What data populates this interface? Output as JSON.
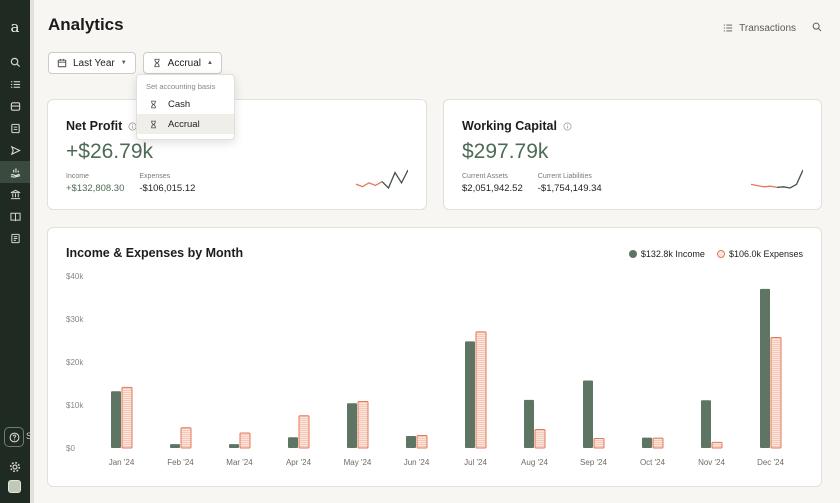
{
  "app": {
    "logo_letter": "a"
  },
  "header": {
    "title": "Analytics",
    "transactions_label": "Transactions"
  },
  "filters": {
    "period_label": "Last Year",
    "basis_label": "Accrual"
  },
  "basis_dropdown": {
    "header": "Set accounting basis",
    "options": [
      "Cash",
      "Accrual"
    ],
    "selected": "Accrual"
  },
  "net_profit": {
    "title": "Net Profit",
    "value": "+$26.79k",
    "income_label": "Income",
    "income_value": "+$132,808.30",
    "expenses_label": "Expenses",
    "expenses_value": "-$106,015.12"
  },
  "working_capital": {
    "title": "Working Capital",
    "value": "$297.79k",
    "assets_label": "Current Assets",
    "assets_value": "$2,051,942.52",
    "liabilities_label": "Current Liabilities",
    "liabilities_value": "-$1,754,149.34"
  },
  "sidebar": {
    "help_trailing": "S",
    "items": [
      "search-icon",
      "list-icon",
      "archive-icon",
      "document-icon",
      "send-icon",
      "chart-hand-icon",
      "bank-icon",
      "book-icon",
      "report-icon"
    ]
  },
  "colors": {
    "income": "#5e7564",
    "expense": "#e07a5b",
    "expense_fill": "#fbe6de",
    "sidebar": "#1f2a22"
  },
  "chart_data": {
    "type": "bar",
    "title": "Income & Expenses by Month",
    "categories": [
      "Jan '24",
      "Feb '24",
      "Mar '24",
      "Apr '24",
      "May '24",
      "Jun '24",
      "Jul '24",
      "Aug '24",
      "Sep '24",
      "Oct '24",
      "Nov '24",
      "Dec '24"
    ],
    "series": [
      {
        "name": "Income",
        "legend": "$132.8k Income",
        "values": [
          13200,
          900,
          900,
          2500,
          10400,
          2800,
          24800,
          11200,
          15700,
          2400,
          11100,
          37000
        ]
      },
      {
        "name": "Expenses",
        "legend": "$106.0k Expenses",
        "values": [
          14100,
          4700,
          3500,
          7500,
          10800,
          2900,
          27000,
          4300,
          2200,
          2300,
          1300,
          25700
        ]
      }
    ],
    "y_ticks": [
      "$0",
      "$10k",
      "$20k",
      "$30k",
      "$40k"
    ],
    "ylim": [
      0,
      40000
    ],
    "grid": false,
    "legend_position": "top-right"
  },
  "sparklines": {
    "net_profit": [
      3,
      2.6,
      3.2,
      2.8,
      3.4,
      2.4,
      4.8,
      3.2,
      5.2
    ],
    "working_capital": [
      2.6,
      2.4,
      2.2,
      2.3,
      2.1,
      2.2,
      2.0,
      2.6,
      5.0
    ]
  }
}
